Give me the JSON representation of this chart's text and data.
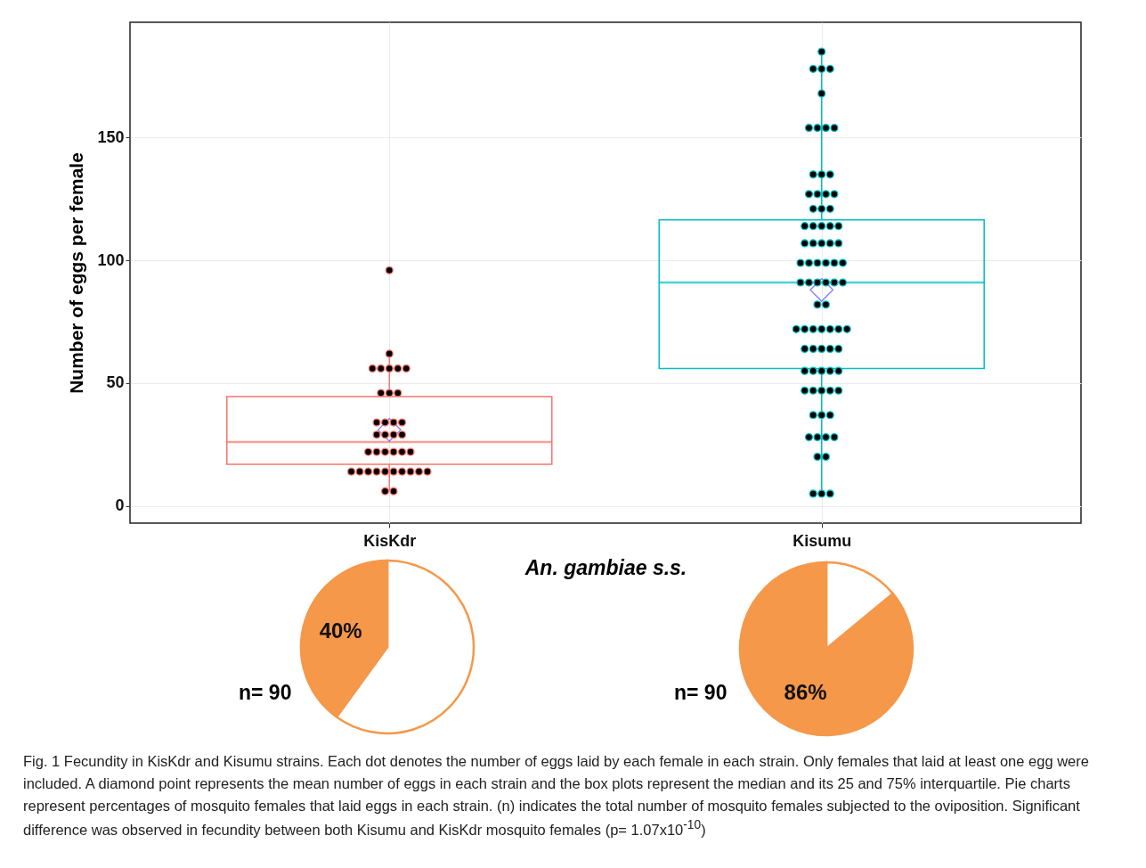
{
  "chart_data": [
    {
      "type": "box",
      "categories": [
        "KisKdr",
        "Kisumu"
      ],
      "xlabel": "An. gambiae s.s.",
      "ylabel": "Number of eggs per female",
      "ylim": [
        -7,
        197
      ],
      "yticks": [
        0,
        50,
        100,
        150
      ],
      "grid": true,
      "series": [
        {
          "type": "box",
          "colors": [
            "#f8766d",
            "#00bfc4"
          ],
          "boxes": [
            {
              "low": 6,
              "q1": 17,
              "median": 26,
              "q3": 44.5,
              "high": 62,
              "mean": 31
            },
            {
              "low": 5,
              "q1": 56,
              "median": 91,
              "q3": 116.5,
              "high": 185,
              "mean": 88
            }
          ]
        },
        {
          "type": "scatter",
          "color": "#000000",
          "x": [
            "KisKdr",
            "KisKdr",
            "KisKdr",
            "KisKdr",
            "KisKdr",
            "KisKdr",
            "KisKdr",
            "KisKdr",
            "KisKdr",
            "KisKdr",
            "KisKdr",
            "KisKdr",
            "KisKdr",
            "KisKdr",
            "KisKdr",
            "KisKdr",
            "KisKdr",
            "KisKdr",
            "KisKdr",
            "KisKdr",
            "KisKdr",
            "KisKdr",
            "KisKdr",
            "KisKdr",
            "KisKdr",
            "KisKdr",
            "KisKdr",
            "KisKdr",
            "KisKdr",
            "KisKdr",
            "KisKdr",
            "KisKdr",
            "KisKdr",
            "KisKdr",
            "KisKdr",
            "KisKdr",
            "Kisumu",
            "Kisumu",
            "Kisumu",
            "Kisumu",
            "Kisumu",
            "Kisumu",
            "Kisumu",
            "Kisumu",
            "Kisumu",
            "Kisumu",
            "Kisumu",
            "Kisumu",
            "Kisumu",
            "Kisumu",
            "Kisumu",
            "Kisumu",
            "Kisumu",
            "Kisumu",
            "Kisumu",
            "Kisumu",
            "Kisumu",
            "Kisumu",
            "Kisumu",
            "Kisumu",
            "Kisumu",
            "Kisumu",
            "Kisumu",
            "Kisumu",
            "Kisumu",
            "Kisumu",
            "Kisumu",
            "Kisumu",
            "Kisumu",
            "Kisumu",
            "Kisumu",
            "Kisumu",
            "Kisumu",
            "Kisumu",
            "Kisumu",
            "Kisumu",
            "Kisumu",
            "Kisumu",
            "Kisumu",
            "Kisumu",
            "Kisumu",
            "Kisumu",
            "Kisumu",
            "Kisumu",
            "Kisumu",
            "Kisumu",
            "Kisumu",
            "Kisumu",
            "Kisumu",
            "Kisumu",
            "Kisumu",
            "Kisumu",
            "Kisumu",
            "Kisumu",
            "Kisumu",
            "Kisumu",
            "Kisumu",
            "Kisumu",
            "Kisumu",
            "Kisumu",
            "Kisumu",
            "Kisumu",
            "Kisumu",
            "Kisumu",
            "Kisumu",
            "Kisumu",
            "Kisumu",
            "Kisumu",
            "Kisumu",
            "Kisumu",
            "Kisumu",
            "Kisumu",
            "Kisumu"
          ],
          "values": [
            96,
            62,
            56,
            56,
            56,
            56,
            56,
            46,
            46,
            46,
            34,
            34,
            34,
            34,
            29,
            29,
            29,
            29,
            22,
            22,
            22,
            22,
            22,
            22,
            14,
            14,
            14,
            14,
            14,
            14,
            14,
            14,
            14,
            14,
            6,
            6,
            185,
            178,
            178,
            178,
            168,
            154,
            154,
            154,
            154,
            135,
            135,
            135,
            127,
            127,
            127,
            127,
            121,
            121,
            121,
            114,
            114,
            114,
            114,
            114,
            107,
            107,
            107,
            107,
            107,
            99,
            99,
            99,
            99,
            99,
            99,
            91,
            91,
            91,
            91,
            91,
            91,
            82,
            82,
            72,
            72,
            72,
            72,
            72,
            72,
            72,
            64,
            64,
            64,
            64,
            64,
            55,
            55,
            55,
            55,
            55,
            47,
            47,
            47,
            47,
            47,
            37,
            37,
            37,
            28,
            28,
            28,
            28,
            20,
            20,
            5,
            5,
            5
          ]
        }
      ],
      "annotations": [
        "Fig. 1  Fecundity in KisKdr and Kisumu strains. Each dot denotes the number of eggs laid by each female in each strain. Only females that laid at least one egg were included. A diamond point represents the mean number of eggs in each strain and the box plots represent the median and its 25 and 75% interquartile. Pie charts represent percentages of mosquito females that laid eggs in each strain. (n) indicates the total number of mosquito females subjected to the oviposition. Significant difference was observed in fecundity between both Kisumu and KisKdr mosquito females (p= 1.07x10$^{-10}$)"
      ]
    },
    {
      "type": "pie",
      "categories": [
        null,
        null
      ],
      "values": [
        60,
        40
      ],
      "colors": [
        "#ffffff",
        "#f5984a"
      ],
      "value_labels": [
        null,
        "40%"
      ],
      "annotations": [
        "n= 90"
      ]
    },
    {
      "type": "pie",
      "categories": [
        null,
        null
      ],
      "values": [
        14,
        86
      ],
      "colors": [
        "#ffffff",
        "#f5984a"
      ],
      "value_labels": [
        null,
        "86%"
      ],
      "annotations": [
        "n= 90"
      ]
    }
  ]
}
